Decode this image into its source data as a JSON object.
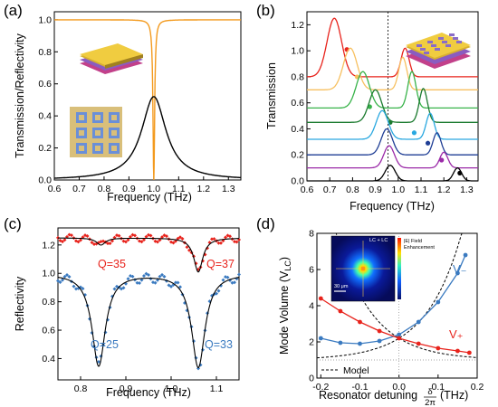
{
  "chart_data": [
    {
      "type": "line",
      "panel": "(a)",
      "xlabel": "Frequency (THz)",
      "ylabel": "Transmission/Reflectivity",
      "xlim": [
        0.6,
        1.35
      ],
      "ylim": [
        0,
        1.05
      ],
      "xticks": [
        "0.6",
        "0.7",
        "0.8",
        "0.9",
        "1.0",
        "1.1",
        "1.2",
        "1.3"
      ],
      "yticks": [
        "0.0",
        "0.2",
        "0.4",
        "0.6",
        "0.8",
        "1.0"
      ],
      "series": [
        {
          "color": "#f39a1e",
          "resonance": 1.0,
          "baseline": 1.0,
          "dip_min": 0.0,
          "linewidth": 0.004
        },
        {
          "color": "#000000",
          "resonance": 1.0,
          "peak": 0.52,
          "linewidth": 0.06
        }
      ]
    },
    {
      "type": "line",
      "panel": "(b)",
      "xlabel": "Frequency (THz)",
      "ylabel": "Transmission",
      "xlim": [
        0.6,
        1.35
      ],
      "ylim": [
        0,
        1.3
      ],
      "xticks": [
        "0.6",
        "0.7",
        "0.8",
        "0.9",
        "1.0",
        "1.1",
        "1.2",
        "1.3"
      ],
      "yticks": [
        "0.0",
        "0.2",
        "0.4",
        "0.6",
        "0.8",
        "1.0",
        "1.2"
      ],
      "vline": 0.955,
      "series": [
        {
          "color": "#e8231c",
          "offset": 0.8,
          "left_peak": [
            0.72,
            0.45
          ],
          "right_peak": [
            1.03,
            0.22
          ],
          "dot": [
            0.775,
            1.01
          ]
        },
        {
          "color": "#f7c060",
          "offset": 0.7,
          "left_peak": [
            0.79,
            0.32
          ],
          "right_peak": [
            1.02,
            0.25
          ],
          "dot": [
            0.82,
            0.8
          ]
        },
        {
          "color": "#38b34a",
          "offset": 0.56,
          "left_peak": [
            0.845,
            0.28
          ],
          "right_peak": [
            1.06,
            0.28
          ],
          "dot": [
            0.875,
            0.57
          ]
        },
        {
          "color": "#1a7a2e",
          "offset": 0.45,
          "left_peak": [
            0.9,
            0.25
          ],
          "right_peak": [
            1.11,
            0.26
          ],
          "dot": [
            0.965,
            0.45
          ]
        },
        {
          "color": "#2aa8e0",
          "offset": 0.32,
          "left_peak": [
            0.93,
            0.22
          ],
          "right_peak": [
            1.14,
            0.2
          ],
          "dot": [
            1.07,
            0.37
          ]
        },
        {
          "color": "#1f3e95",
          "offset": 0.2,
          "left_peak": [
            0.95,
            0.2
          ],
          "right_peak": [
            1.17,
            0.17
          ],
          "dot": [
            1.13,
            0.29
          ]
        },
        {
          "color": "#9b2aa8",
          "offset": 0.1,
          "left_peak": [
            0.96,
            0.17
          ],
          "right_peak": [
            1.2,
            0.12
          ],
          "dot": [
            1.19,
            0.16
          ]
        },
        {
          "color": "#000000",
          "offset": 0.0,
          "left_peak": [
            0.965,
            0.12
          ],
          "right_peak": [
            1.26,
            0.1
          ],
          "dot": [
            1.27,
            0.06
          ]
        }
      ]
    },
    {
      "type": "scatter",
      "panel": "(c)",
      "xlabel": "Frequency (THz)",
      "ylabel": "Reflectivity",
      "xlim": [
        0.75,
        1.15
      ],
      "ylim": [
        0.25,
        1.32
      ],
      "xticks": [
        "0.8",
        "0.9",
        "1.0",
        "1.1"
      ],
      "yticks": [
        "0.4",
        "0.6",
        "0.8",
        "1.0",
        "1.2"
      ],
      "series": [
        {
          "color": "#e8231c",
          "baseline": 1.25,
          "dips": [
            [
              0.845,
              1.2
            ],
            [
              1.06,
              1.01
            ]
          ],
          "q_labels": [
            "Q=35",
            "Q=37"
          ]
        },
        {
          "color": "#3a7ac0",
          "baseline": 1.0,
          "dips": [
            [
              0.84,
              0.35
            ],
            [
              1.06,
              0.34
            ]
          ],
          "q_labels": [
            "Q=25",
            "Q=33"
          ]
        }
      ]
    },
    {
      "type": "line",
      "panel": "(d)",
      "xlabel": "Resonator detuning δ/2π (THz)",
      "ylabel": "Mode Volume (V_LC)",
      "xlim": [
        -0.21,
        0.2
      ],
      "ylim": [
        0,
        8
      ],
      "xticks": [
        "-0.2",
        "-0.1",
        "0.0",
        "0.1",
        "0.2"
      ],
      "yticks": [
        "0",
        "2",
        "4",
        "6",
        "8"
      ],
      "series": [
        {
          "name": "V₋",
          "color": "#3a7ac0",
          "points": [
            [
              -0.2,
              2.2
            ],
            [
              -0.15,
              1.95
            ],
            [
              -0.1,
              1.9
            ],
            [
              -0.05,
              2.05
            ],
            [
              0.0,
              2.4
            ],
            [
              0.05,
              3.1
            ],
            [
              0.1,
              4.2
            ],
            [
              0.15,
              5.8
            ],
            [
              0.17,
              6.8
            ]
          ]
        },
        {
          "name": "V₊",
          "color": "#e8231c",
          "points": [
            [
              -0.2,
              4.4
            ],
            [
              -0.15,
              3.7
            ],
            [
              -0.1,
              3.1
            ],
            [
              -0.05,
              2.6
            ],
            [
              0.0,
              2.2
            ],
            [
              0.05,
              1.9
            ],
            [
              0.1,
              1.65
            ],
            [
              0.15,
              1.5
            ],
            [
              0.18,
              1.4
            ]
          ]
        },
        {
          "name": "Model",
          "color": "#000000",
          "dash": true
        }
      ],
      "legend": "Model",
      "inset": {
        "title": "|E| Field Enhancement",
        "label": "LC + LC",
        "scale": "30 μm"
      }
    }
  ],
  "labels": {
    "panel_a": "(a)",
    "panel_b": "(b)",
    "panel_c": "(c)",
    "panel_d": "(d)",
    "a_xlabel": "Frequency (THz)",
    "a_ylabel": "Transmission/Reflectivity",
    "b_xlabel": "Frequency (THz)",
    "b_ylabel": "Transmission",
    "c_xlabel": "Frequency (THz)",
    "c_ylabel": "Reflectivity",
    "d_xlabel": "Resonator detuning",
    "d_xlabel_unit": "(THz)",
    "d_frac_num": "δ",
    "d_frac_den": "2π",
    "d_ylabel": "Mode Volume (V",
    "d_ylabel_sub": "LC",
    "d_ylabel_end": ")",
    "q35": "Q=35",
    "q37": "Q=37",
    "q25": "Q=25",
    "q33": "Q=33",
    "vminus": "V₋",
    "vplus": "V₊",
    "model": "Model",
    "inset_title1": "|E| Field",
    "inset_title2": "Enhancement",
    "inset_label": "LC + LC",
    "inset_scale": "30 μm"
  },
  "colors": {
    "orange": "#f39a1e",
    "red": "#e8231c",
    "blue": "#3a7ac0",
    "black": "#000000"
  }
}
